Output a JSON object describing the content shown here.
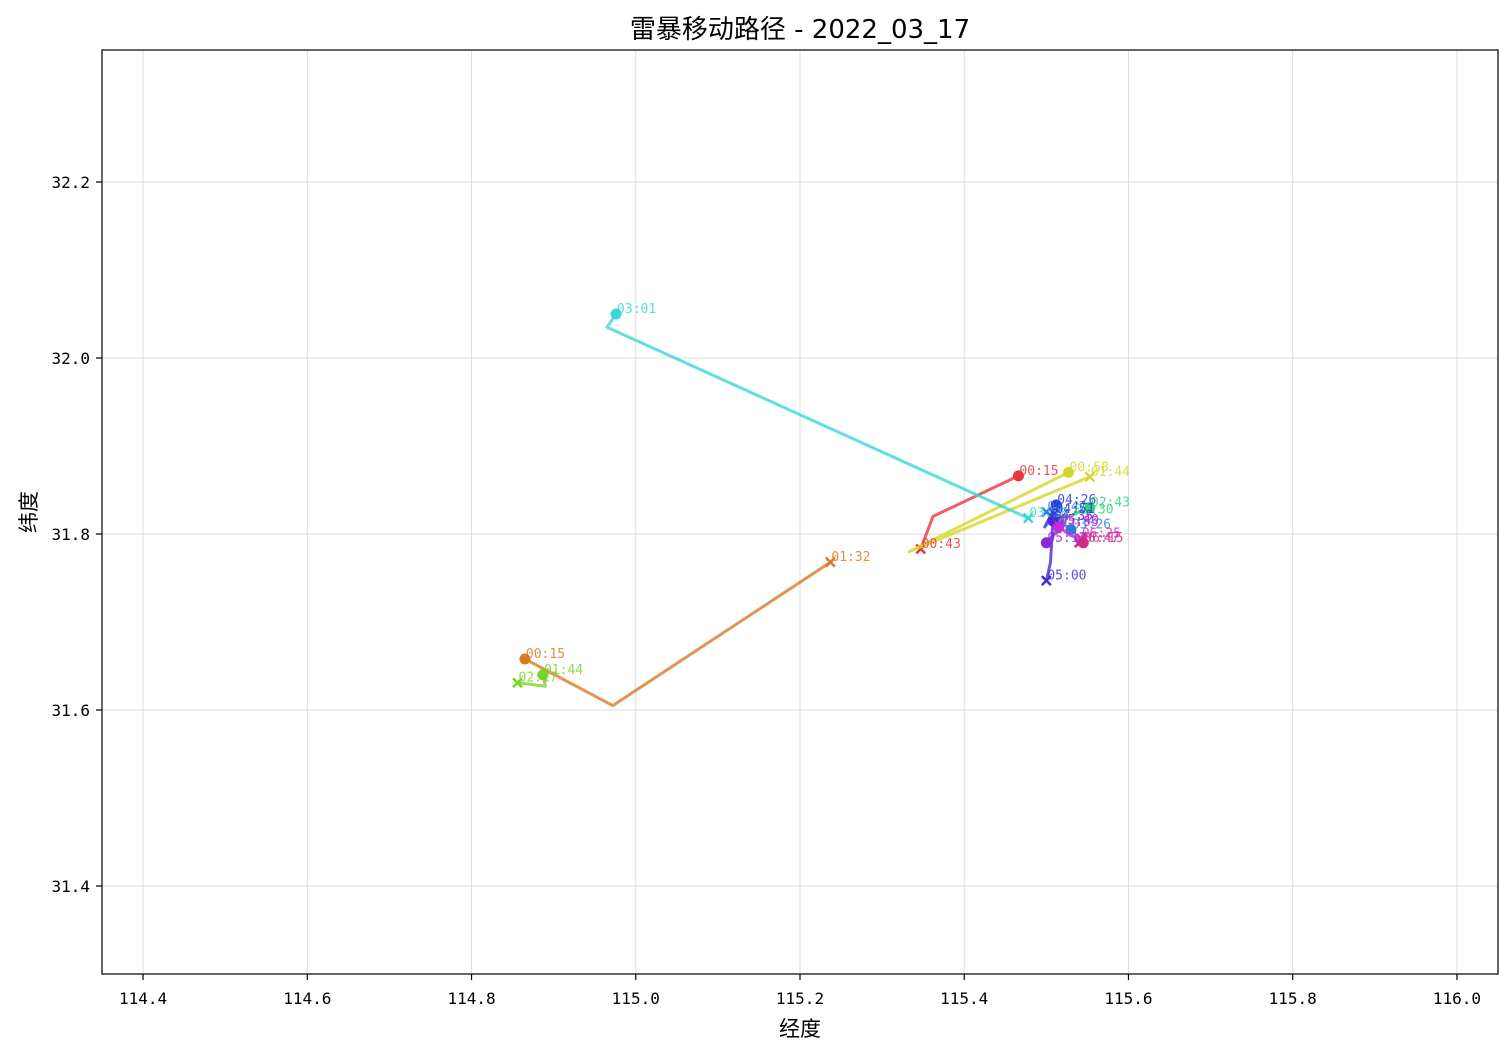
{
  "chart_data": {
    "type": "line",
    "title": "雷暴移动路径 - 2022_03_17",
    "xlabel": "经度",
    "ylabel": "纬度",
    "xlim": [
      114.35,
      116.05
    ],
    "ylim": [
      31.3,
      32.35
    ],
    "xticks": [
      114.4,
      114.6,
      114.8,
      115.0,
      115.2,
      115.4,
      115.6,
      115.8,
      116.0
    ],
    "xtick_labels": [
      "114.4",
      "114.6",
      "114.8",
      "115.0",
      "115.2",
      "115.4",
      "115.6",
      "115.8",
      "116.0"
    ],
    "yticks": [
      31.4,
      31.6,
      31.8,
      32.0,
      32.2
    ],
    "ytick_labels": [
      "31.4",
      "31.6",
      "31.8",
      "32.0",
      "32.2"
    ],
    "grid": true,
    "legend": "none",
    "markers": {
      "start": "circle",
      "end": "x"
    },
    "series": [
      {
        "color": "#e8373b",
        "x": [
          115.466,
          115.362,
          115.347
        ],
        "y": [
          31.866,
          31.82,
          31.783
        ],
        "labels": [
          {
            "text": "00:15",
            "x": 115.466,
            "y": 31.866
          },
          {
            "text": "00:43",
            "x": 115.347,
            "y": 31.783
          }
        ]
      },
      {
        "color": "#d97a25",
        "x": [
          114.865,
          114.972,
          115.237
        ],
        "y": [
          31.658,
          31.605,
          31.768
        ],
        "labels": [
          {
            "text": "00:15",
            "x": 114.865,
            "y": 31.658
          },
          {
            "text": "01:32",
            "x": 115.237,
            "y": 31.768
          }
        ]
      },
      {
        "color": "#d6d62a",
        "x": [
          115.527,
          115.333,
          115.553
        ],
        "y": [
          31.87,
          31.78,
          31.865
        ],
        "labels": [
          {
            "text": "00:58",
            "x": 115.527,
            "y": 31.87
          },
          {
            "text": "01:44",
            "x": 115.553,
            "y": 31.865
          }
        ]
      },
      {
        "color": "#79d42a",
        "x": [
          114.887,
          114.89,
          114.856
        ],
        "y": [
          31.64,
          31.627,
          31.631
        ],
        "labels": [
          {
            "text": "01:44",
            "x": 114.887,
            "y": 31.64
          },
          {
            "text": "02:17",
            "x": 114.856,
            "y": 31.631
          }
        ]
      },
      {
        "color": "#2fd47e",
        "x": [
          115.553,
          115.533,
          115.518
        ],
        "y": [
          31.83,
          31.822,
          31.818
        ],
        "labels": [
          {
            "text": "02:43",
            "x": 115.553,
            "y": 31.83
          },
          {
            "text": "03:30",
            "x": 115.533,
            "y": 31.822
          }
        ]
      },
      {
        "color": "#3ad6d6",
        "x": [
          114.976,
          114.965,
          115.478
        ],
        "y": [
          32.05,
          32.035,
          31.818
        ],
        "labels": [
          {
            "text": "03:01",
            "x": 114.976,
            "y": 32.05
          },
          {
            "text": "03:26",
            "x": 115.478,
            "y": 31.818
          }
        ]
      },
      {
        "color": "#2e7ed6",
        "x": [
          115.53,
          115.515,
          115.5
        ],
        "y": [
          31.805,
          31.815,
          31.825
        ],
        "labels": [
          {
            "text": "03:26",
            "x": 115.53,
            "y": 31.805
          },
          {
            "text": "03:47",
            "x": 115.5,
            "y": 31.825
          }
        ]
      },
      {
        "color": "#2a3ad6",
        "x": [
          115.512,
          115.498,
          115.51
        ],
        "y": [
          31.833,
          31.808,
          31.823
        ],
        "labels": [
          {
            "text": "04:26",
            "x": 115.512,
            "y": 31.833
          },
          {
            "text": "04:51",
            "x": 115.51,
            "y": 31.823
          }
        ]
      },
      {
        "color": "#4a2ad6",
        "x": [
          115.508,
          115.505,
          115.5
        ],
        "y": [
          31.815,
          31.768,
          31.747
        ],
        "labels": [
          {
            "text": "04:35",
            "x": 115.508,
            "y": 31.815
          },
          {
            "text": "05:00",
            "x": 115.5,
            "y": 31.747
          }
        ]
      },
      {
        "color": "#8a2ad6",
        "x": [
          115.5,
          115.51,
          115.515
        ],
        "y": [
          31.79,
          31.8,
          31.81
        ],
        "labels": [
          {
            "text": "05:12",
            "x": 115.5,
            "y": 31.79
          },
          {
            "text": "05:40",
            "x": 115.515,
            "y": 31.81
          }
        ]
      },
      {
        "color": "#c82ad6",
        "x": [
          115.515,
          115.53,
          115.542
        ],
        "y": [
          31.808,
          31.798,
          31.795
        ],
        "labels": [
          {
            "text": "05:55",
            "x": 115.515,
            "y": 31.808
          },
          {
            "text": "06:25",
            "x": 115.542,
            "y": 31.795
          }
        ]
      },
      {
        "color": "#d62a82",
        "x": [
          115.545,
          115.54,
          115.54
        ],
        "y": [
          31.79,
          31.788,
          31.79
        ],
        "labels": [
          {
            "text": "06:15",
            "x": 115.545,
            "y": 31.79
          },
          {
            "text": "06:47",
            "x": 115.54,
            "y": 31.79
          }
        ]
      }
    ]
  }
}
